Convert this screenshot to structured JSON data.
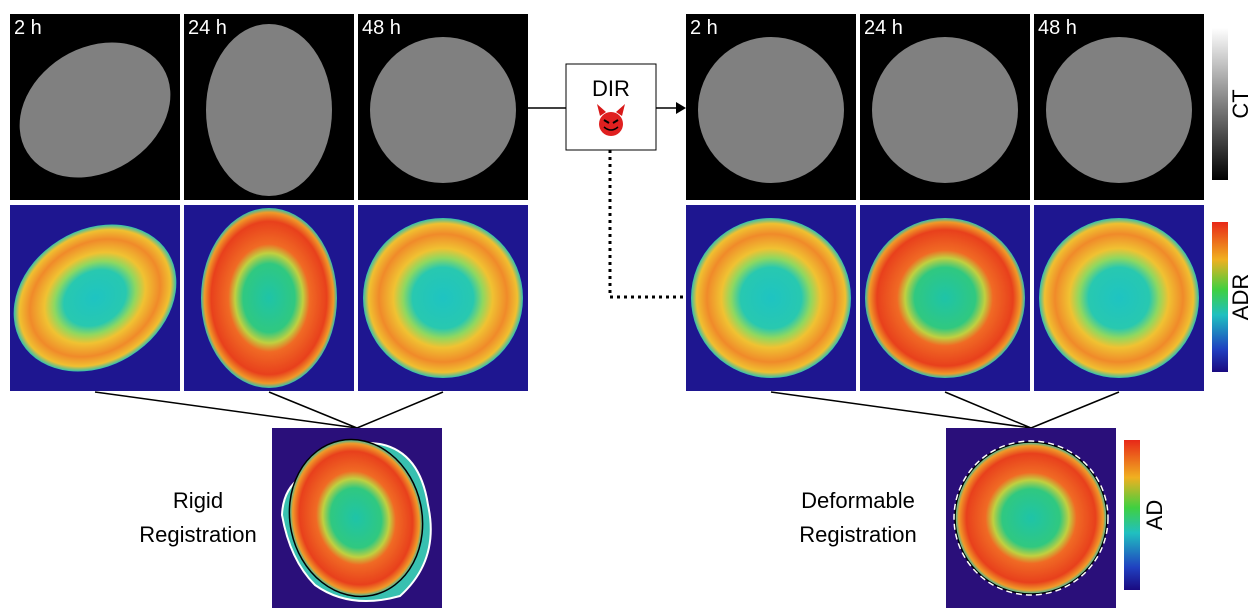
{
  "left_panels": [
    {
      "label": "2 h"
    },
    {
      "label": "24 h"
    },
    {
      "label": "48 h"
    }
  ],
  "right_panels": [
    {
      "label": "2 h"
    },
    {
      "label": "24 h"
    },
    {
      "label": "48 h"
    }
  ],
  "dir_box": {
    "label": "DIR"
  },
  "colorbars": {
    "ct": "CT",
    "adr": "ADR",
    "ad": "AD"
  },
  "rigid": {
    "lines": [
      "Rigid",
      "Registration"
    ]
  },
  "deformable": {
    "lines": [
      "Deformable",
      "Registration"
    ]
  }
}
